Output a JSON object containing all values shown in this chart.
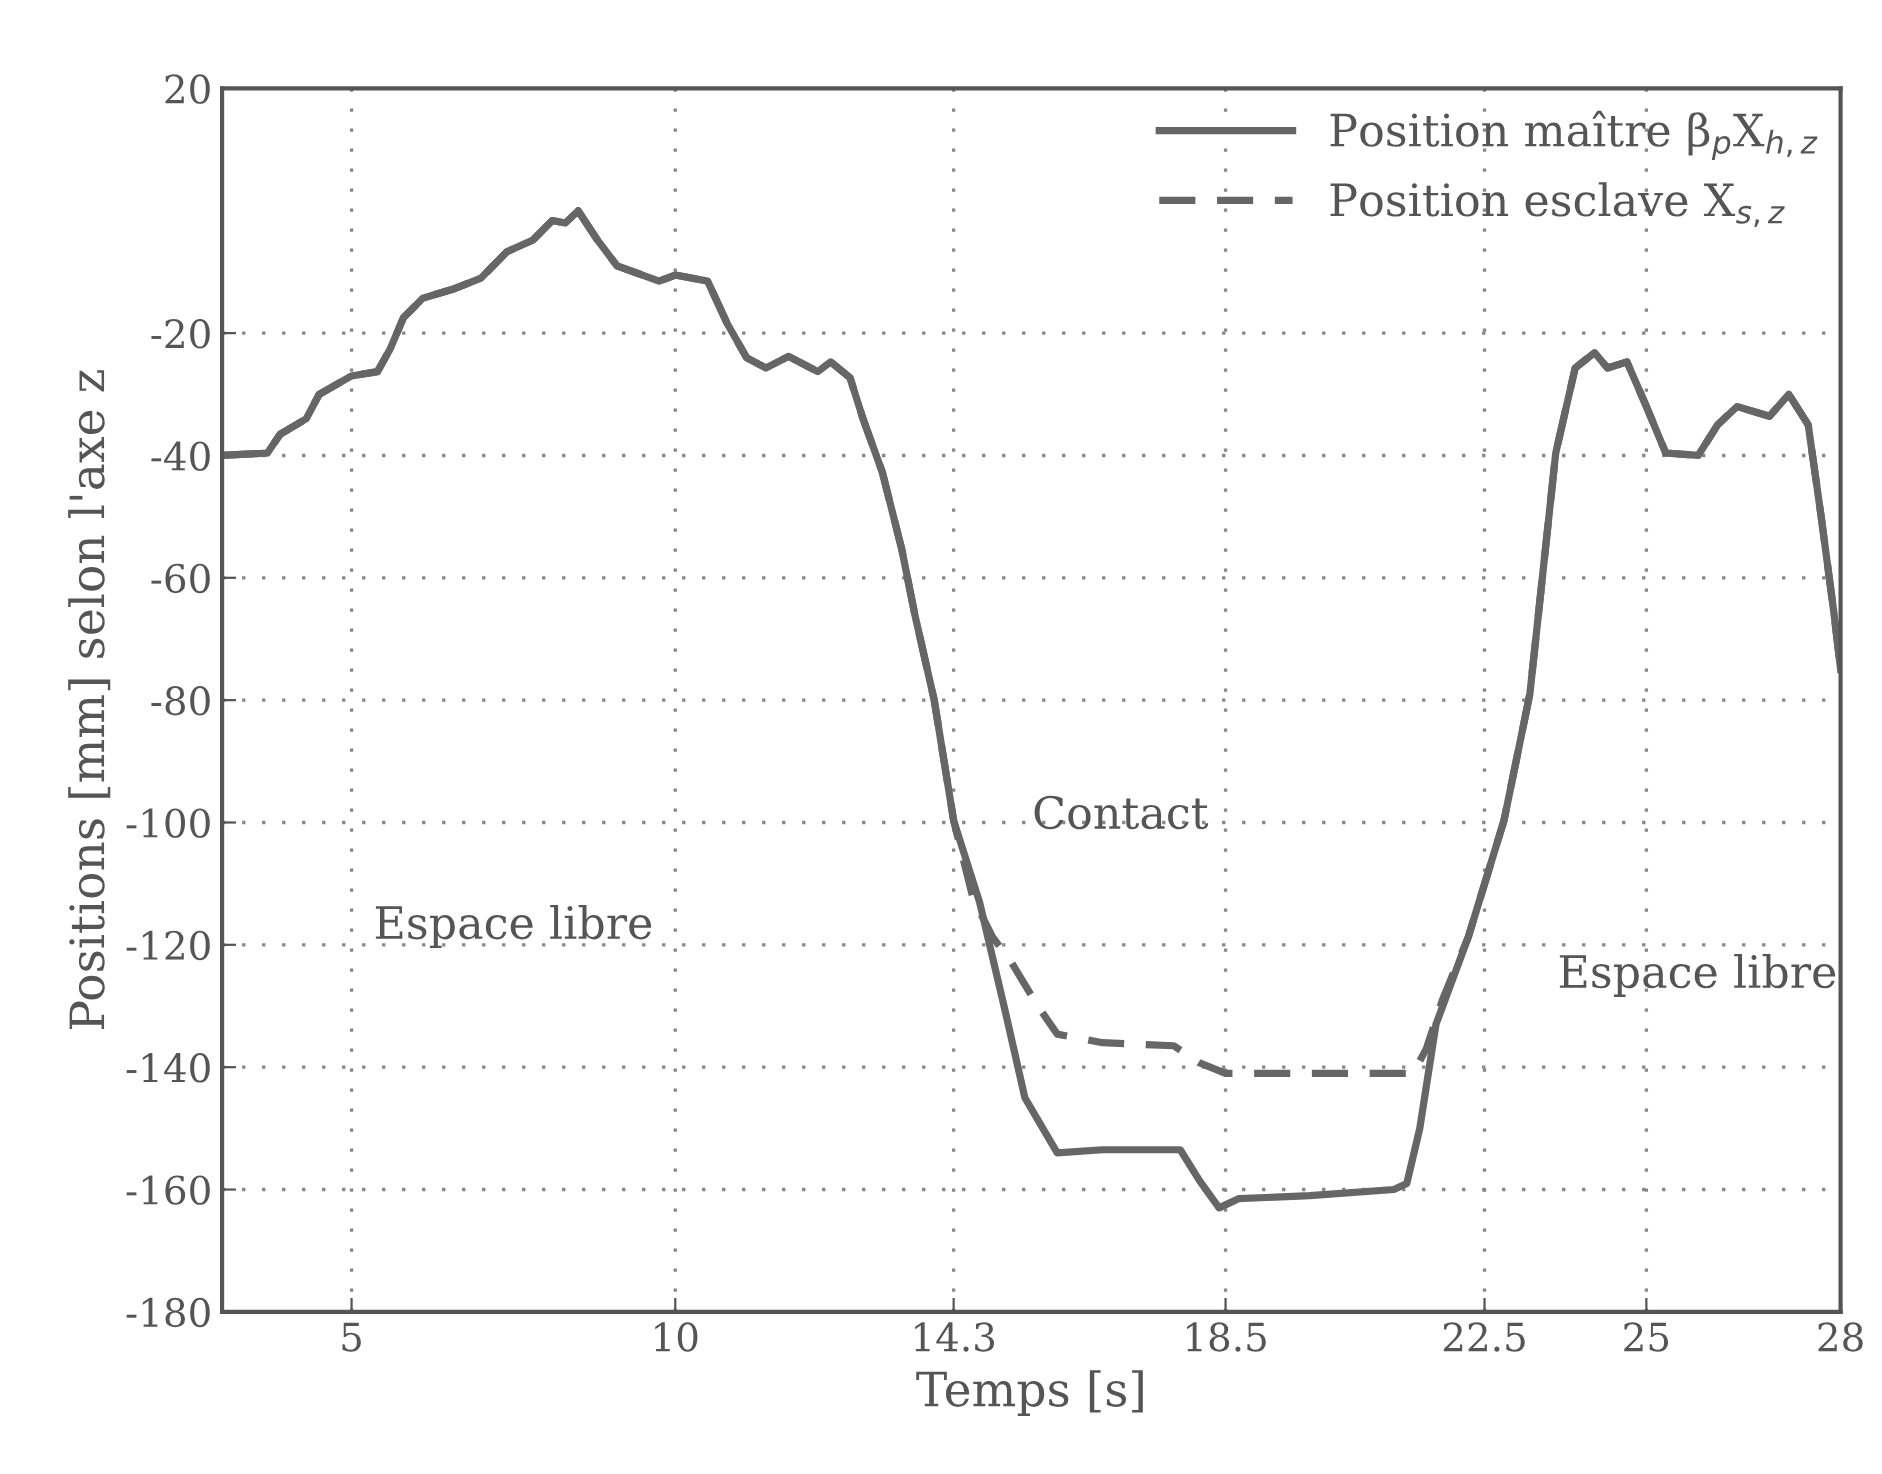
{
  "chart_data": {
    "type": "line",
    "xlabel": "Temps [s]",
    "ylabel": "Positions [mm] selon l'axe z",
    "xlim": [
      3,
      28
    ],
    "xticks": [
      5,
      10,
      14.3,
      18.5,
      22.5,
      25,
      28
    ],
    "ylim": [
      -180,
      20
    ],
    "yticks": [
      20,
      -20,
      -40,
      -60,
      -80,
      -100,
      -120,
      -140,
      -160,
      -180
    ],
    "grid": true,
    "legend": "top right",
    "annotations": [
      "Espace libre",
      "Contact",
      "Espace libre"
    ],
    "series": [
      {
        "name": "Position maître β$_{p}$X$_{h,z}$",
        "color": "#666666",
        "line_style": "solid",
        "x": [
          3.0,
          3.7,
          3.9,
          4.3,
          4.5,
          5.0,
          5.4,
          5.6,
          5.8,
          6.1,
          6.6,
          7.0,
          7.4,
          7.8,
          8.1,
          8.3,
          8.5,
          8.8,
          9.1,
          9.75,
          10.0,
          10.5,
          10.8,
          11.1,
          11.4,
          11.75,
          12.2,
          12.4,
          12.7,
          12.9,
          13.2,
          13.5,
          13.7,
          14.0,
          14.3,
          14.7,
          15.1,
          15.4,
          15.9,
          16.6,
          17.8,
          18.1,
          18.4,
          18.7,
          19.8,
          21.1,
          21.3,
          21.5,
          21.75,
          22.25,
          22.8,
          23.2,
          23.6,
          23.9,
          24.2,
          24.4,
          24.7,
          25.0,
          25.3,
          25.8,
          26.1,
          26.4,
          26.9,
          27.2,
          27.5,
          27.7,
          27.9,
          28.0
        ],
        "values": [
          -40,
          -39.6,
          -36.5,
          -34,
          -30,
          -27,
          -26.3,
          -22.5,
          -17.5,
          -14.3,
          -12.7,
          -11,
          -6.7,
          -4.8,
          -1.6,
          -2,
          0,
          -4.8,
          -9,
          -11.5,
          -10.5,
          -11.5,
          -18.4,
          -24,
          -25.7,
          -23.8,
          -26.3,
          -24.7,
          -27.3,
          -34,
          -42.8,
          -55.4,
          -66,
          -80,
          -99.7,
          -113,
          -131,
          -145,
          -154,
          -153.5,
          -153.5,
          -158.6,
          -163,
          -161.5,
          -161,
          -160,
          -159,
          -150,
          -133,
          -118.7,
          -99.7,
          -79,
          -39.6,
          -25.7,
          -23.2,
          -25.7,
          -24.7,
          -32,
          -39.6,
          -40,
          -35,
          -32,
          -33.6,
          -30,
          -35,
          -50,
          -66,
          -75
        ]
      },
      {
        "name": "Position esclave X$_{s,z}$",
        "color": "#666666",
        "line_style": "dashed",
        "x": [
          3.0,
          3.7,
          3.9,
          4.3,
          4.5,
          5.0,
          5.4,
          5.6,
          5.8,
          6.1,
          6.6,
          7.0,
          7.4,
          7.8,
          8.1,
          8.3,
          8.5,
          8.8,
          9.1,
          9.75,
          10.0,
          10.5,
          10.8,
          11.1,
          11.4,
          11.75,
          12.2,
          12.4,
          12.7,
          12.9,
          13.2,
          13.5,
          13.7,
          14.0,
          14.3,
          14.6,
          14.9,
          15.2,
          15.6,
          15.9,
          16.6,
          17.7,
          18.1,
          18.5,
          19.8,
          21.4,
          21.6,
          21.85,
          22.25,
          22.8,
          23.2,
          23.6,
          23.9,
          24.2,
          24.4,
          24.7,
          25.0,
          25.3,
          25.8,
          26.1,
          26.4,
          26.9,
          27.2,
          27.5,
          27.7,
          27.9,
          28.0
        ],
        "values": [
          -40,
          -39.6,
          -36.5,
          -34,
          -30,
          -27,
          -26.3,
          -22.5,
          -17.5,
          -14.3,
          -12.7,
          -11,
          -6.7,
          -4.8,
          -1.6,
          -2,
          0,
          -4.8,
          -9,
          -11.5,
          -10.5,
          -11.5,
          -18.4,
          -24,
          -25.7,
          -23.8,
          -26.3,
          -24.7,
          -27.3,
          -34,
          -42.8,
          -55.4,
          -66,
          -80,
          -99.7,
          -112.4,
          -118.7,
          -123,
          -130,
          -134.6,
          -136,
          -136.5,
          -139.3,
          -141,
          -141,
          -141,
          -137,
          -129,
          -118.7,
          -99.7,
          -79,
          -39.6,
          -25.7,
          -23.2,
          -25.7,
          -24.7,
          -32,
          -39.6,
          -40,
          -35,
          -32,
          -33.6,
          -30,
          -35,
          -50,
          -66,
          -75
        ]
      }
    ]
  }
}
